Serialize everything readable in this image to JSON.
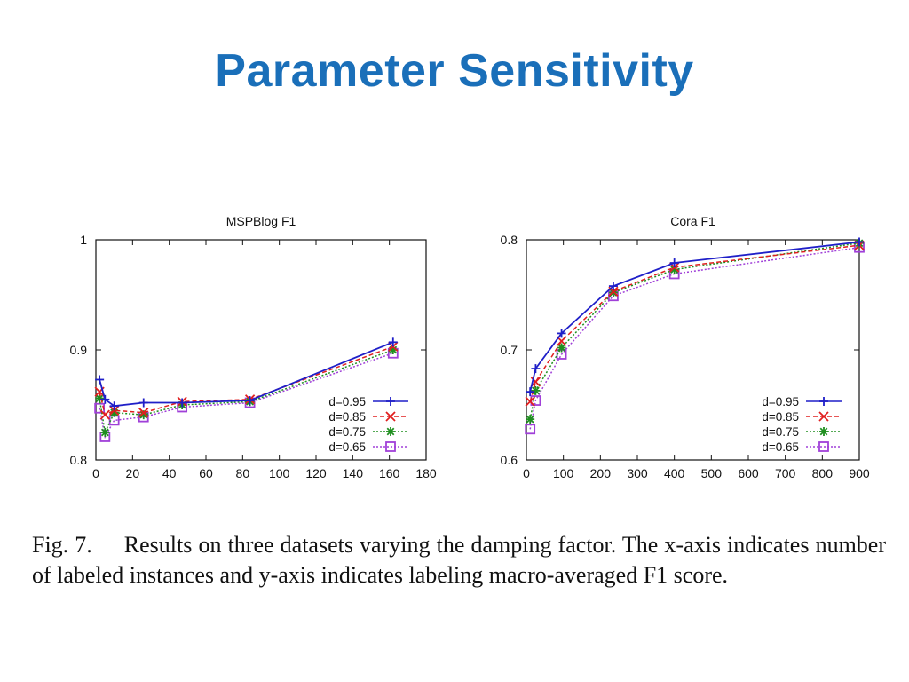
{
  "slide": {
    "title": "Parameter Sensitivity"
  },
  "caption": {
    "label": "Fig. 7.",
    "text": "Results on three datasets varying the damping factor. The x-axis indicates number of labeled instances and y-axis indicates labeling macro-averaged F1 score."
  },
  "colors": {
    "title": "#1a6fb9",
    "d095": "#1f1fc8",
    "d085": "#e01f1f",
    "d075": "#1f8f1f",
    "d065": "#a040d8"
  },
  "chart_data": [
    {
      "type": "line",
      "title": "MSPBlog F1",
      "xlabel": "",
      "ylabel": "",
      "xlim": [
        0,
        180
      ],
      "ylim": [
        0.8,
        1
      ],
      "xticks": [
        "0",
        "20",
        "40",
        "60",
        "80",
        "100",
        "120",
        "140",
        "160",
        "180"
      ],
      "yticks": [
        "0.8",
        "0.9",
        "1"
      ],
      "legend_position": "bottom-right",
      "grid": false,
      "x": [
        2,
        5,
        10,
        26,
        47,
        84,
        162
      ],
      "series": [
        {
          "name": "d=0.95",
          "marker": "plus",
          "dash": "solid",
          "color_key": "d095",
          "values": [
            0.873,
            0.855,
            0.849,
            0.852,
            0.852,
            0.854,
            0.907
          ]
        },
        {
          "name": "d=0.85",
          "marker": "cross",
          "dash": "dashed",
          "color_key": "d085",
          "values": [
            0.862,
            0.841,
            0.845,
            0.843,
            0.853,
            0.855,
            0.903
          ]
        },
        {
          "name": "d=0.75",
          "marker": "star",
          "dash": "dotted",
          "color_key": "d075",
          "values": [
            0.856,
            0.825,
            0.843,
            0.841,
            0.85,
            0.853,
            0.9
          ]
        },
        {
          "name": "d=0.65",
          "marker": "square",
          "dash": "dotted",
          "color_key": "d065",
          "values": [
            0.847,
            0.821,
            0.836,
            0.839,
            0.848,
            0.852,
            0.897
          ]
        }
      ]
    },
    {
      "type": "line",
      "title": "Cora F1",
      "xlabel": "",
      "ylabel": "",
      "xlim": [
        0,
        900
      ],
      "ylim": [
        0.6,
        0.8
      ],
      "xticks": [
        "0",
        "100",
        "200",
        "300",
        "400",
        "500",
        "600",
        "700",
        "800",
        "900"
      ],
      "yticks": [
        "0.6",
        "0.7",
        "0.8"
      ],
      "legend_position": "bottom-right",
      "grid": false,
      "x": [
        10,
        25,
        95,
        235,
        400,
        900
      ],
      "series": [
        {
          "name": "d=0.95",
          "marker": "plus",
          "dash": "solid",
          "color_key": "d095",
          "values": [
            0.662,
            0.683,
            0.715,
            0.758,
            0.779,
            0.798
          ]
        },
        {
          "name": "d=0.85",
          "marker": "cross",
          "dash": "dashed",
          "color_key": "d085",
          "values": [
            0.653,
            0.671,
            0.708,
            0.753,
            0.775,
            0.795
          ]
        },
        {
          "name": "d=0.75",
          "marker": "star",
          "dash": "dotted",
          "color_key": "d075",
          "values": [
            0.637,
            0.663,
            0.702,
            0.752,
            0.773,
            0.797
          ]
        },
        {
          "name": "d=0.65",
          "marker": "square",
          "dash": "dotted",
          "color_key": "d065",
          "values": [
            0.628,
            0.654,
            0.696,
            0.749,
            0.769,
            0.793
          ]
        }
      ]
    }
  ]
}
